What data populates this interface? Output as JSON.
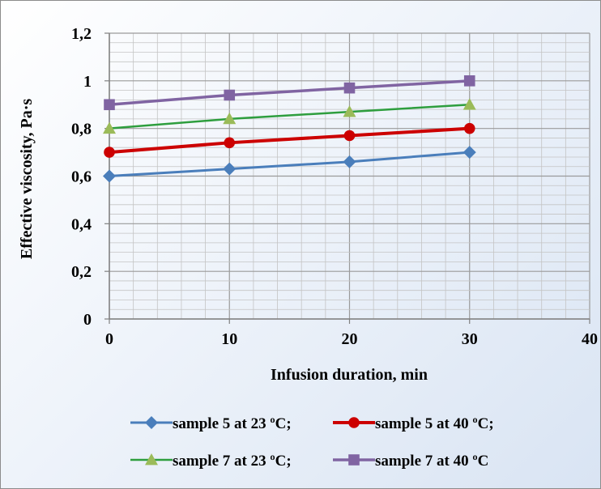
{
  "chart_data": {
    "type": "line",
    "xlabel": "Infusion duration, min",
    "ylabel": "Effective viscosity, Pa·s",
    "xlim": [
      0,
      40
    ],
    "ylim": [
      0,
      1.2
    ],
    "x_ticks": [
      0,
      10,
      20,
      30,
      40
    ],
    "x_tick_labels": [
      "0",
      "10",
      "20",
      "30",
      "40"
    ],
    "y_ticks": [
      0,
      0.2,
      0.4,
      0.6,
      0.8,
      1.0,
      1.2
    ],
    "y_tick_labels": [
      "0",
      "0,2",
      "0,4",
      "0,6",
      "0,8",
      "1",
      "1,2"
    ],
    "grid": true,
    "legend_position": "bottom",
    "series": [
      {
        "name": "sample 5 at 23 ºC;",
        "x": [
          0,
          10,
          20,
          30
        ],
        "values": [
          0.6,
          0.63,
          0.66,
          0.7
        ],
        "color": "#4a7ebb",
        "marker": "diamond"
      },
      {
        "name": "sample 5 at 40 ºC;",
        "x": [
          0,
          10,
          20,
          30
        ],
        "values": [
          0.7,
          0.74,
          0.77,
          0.8
        ],
        "color": "#cc0000",
        "marker": "circle"
      },
      {
        "name": "sample 7 at 23 ºC;",
        "x": [
          0,
          10,
          20,
          30
        ],
        "values": [
          0.8,
          0.84,
          0.87,
          0.9
        ],
        "color": "#9bbb59",
        "marker": "triangle",
        "line_color": "#2e9e3e"
      },
      {
        "name": "sample 7 at 40 ºC",
        "x": [
          0,
          10,
          20,
          30
        ],
        "values": [
          0.9,
          0.94,
          0.97,
          1.0
        ],
        "color": "#8064a2",
        "marker": "square"
      }
    ]
  }
}
